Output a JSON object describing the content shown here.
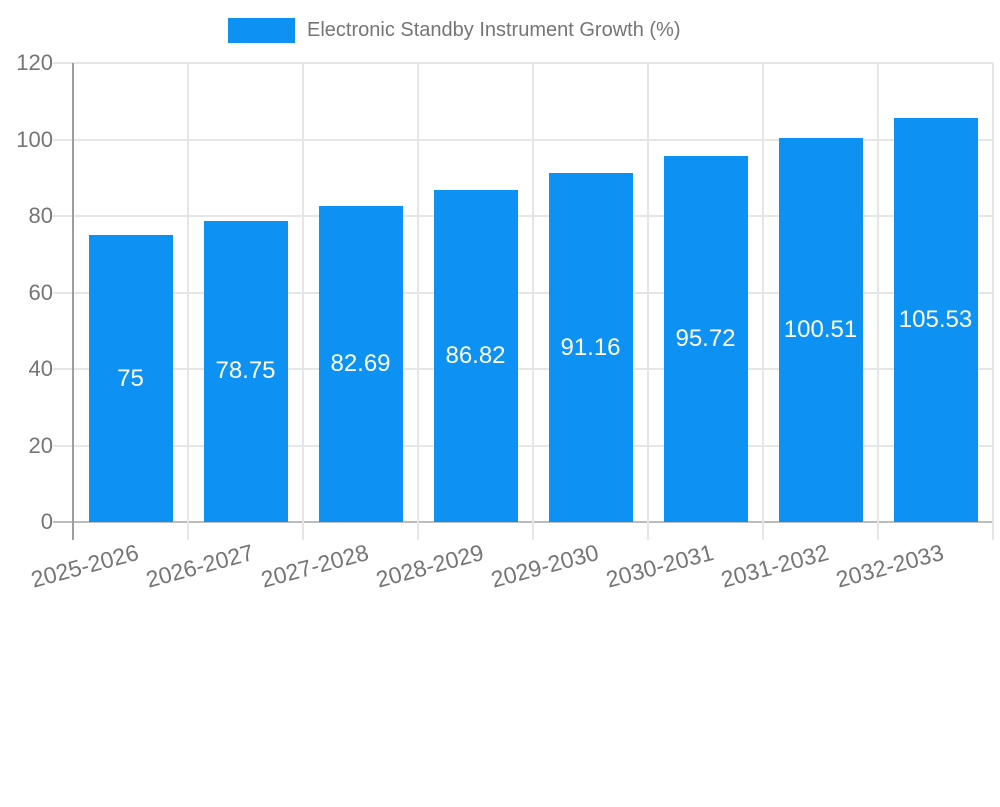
{
  "chart_data": {
    "type": "bar",
    "title": "Electronic Standby Instrument Growth (%)",
    "categories": [
      "2025-2026",
      "2026-2027",
      "2027-2028",
      "2028-2029",
      "2029-2030",
      "2030-2031",
      "2031-2032",
      "2032-2033"
    ],
    "values": [
      75,
      78.75,
      82.69,
      86.82,
      91.16,
      95.72,
      100.51,
      105.53
    ],
    "value_labels": [
      "75",
      "78.75",
      "82.69",
      "86.82",
      "91.16",
      "95.72",
      "100.51",
      "105.53"
    ],
    "xlabel": "",
    "ylabel": "",
    "ylim": [
      0,
      120
    ],
    "yticks": [
      0,
      20,
      40,
      60,
      80,
      100,
      120
    ],
    "legend_position": "top",
    "grid": true,
    "x_label_rotation_deg": -15,
    "colors": {
      "bar": "#0d92f4",
      "bar_label": "#ffffff",
      "axis_text": "#757575",
      "gridline": "#e6e6e6",
      "y_axis_line": "#9e9e9e",
      "x_axis_line": "#bdbdbd",
      "background": "#ffffff"
    }
  }
}
